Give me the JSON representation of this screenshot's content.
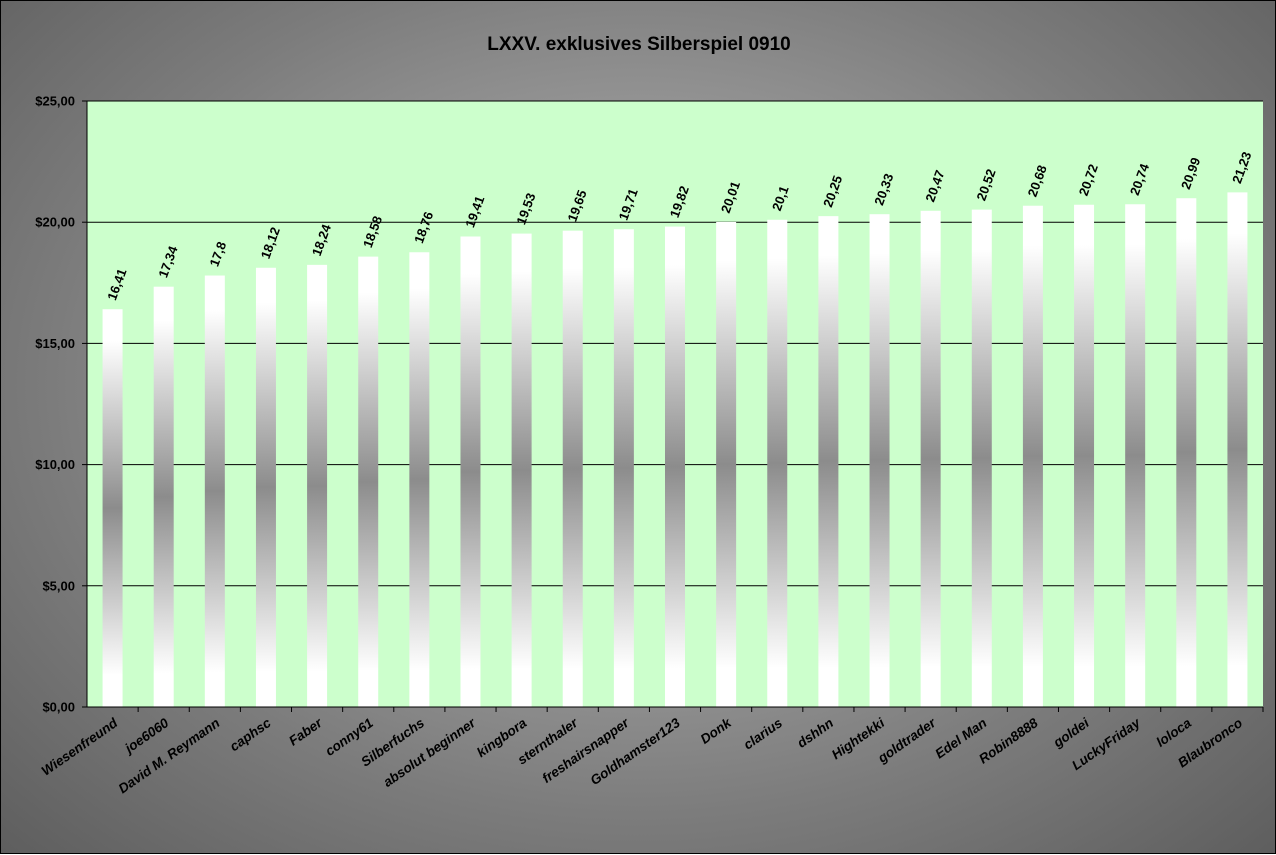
{
  "chart_data": {
    "type": "bar",
    "title": "LXXV. exklusives Silberspiel 0910",
    "xlabel": "",
    "ylabel": "",
    "ylim": [
      0,
      25
    ],
    "yticks": [
      "$0,00",
      "$5,00",
      "$10,00",
      "$15,00",
      "$20,00",
      "$25,00"
    ],
    "grid": true,
    "legend": "none",
    "categories": [
      "Wiesenfreund",
      "joe6060",
      "David M. Reymann",
      "caphsc",
      "Faber",
      "conny61",
      "Silberfuchs",
      "absolut beginner",
      "kingbora",
      "sternthaler",
      "freshairsnapper",
      "Goldhamster123",
      "Donk",
      "clarius",
      "dshhn",
      "Hightekki",
      "goldtrader",
      "Edel Man",
      "Robin8888",
      "goldei",
      "LuckyFriday",
      "loloca",
      "Blaubronco"
    ],
    "values": [
      16.41,
      17.34,
      17.8,
      18.12,
      18.24,
      18.58,
      18.76,
      19.41,
      19.53,
      19.65,
      19.71,
      19.82,
      20.01,
      20.1,
      20.25,
      20.33,
      20.47,
      20.52,
      20.68,
      20.72,
      20.74,
      20.99,
      21.23
    ],
    "data_labels": [
      "16,41",
      "17,34",
      "17,8",
      "18,12",
      "18,24",
      "18,58",
      "18,76",
      "19,41",
      "19,53",
      "19,65",
      "19,71",
      "19,82",
      "20,01",
      "20,1",
      "20,25",
      "20,33",
      "20,47",
      "20,52",
      "20,68",
      "20,72",
      "20,74",
      "20,99",
      "21,23"
    ],
    "colors": {
      "plot_background": "#ccffcc",
      "bar_light": "#ffffff",
      "bar_dark": "#8c8c8c",
      "gridline": "#000000"
    }
  }
}
